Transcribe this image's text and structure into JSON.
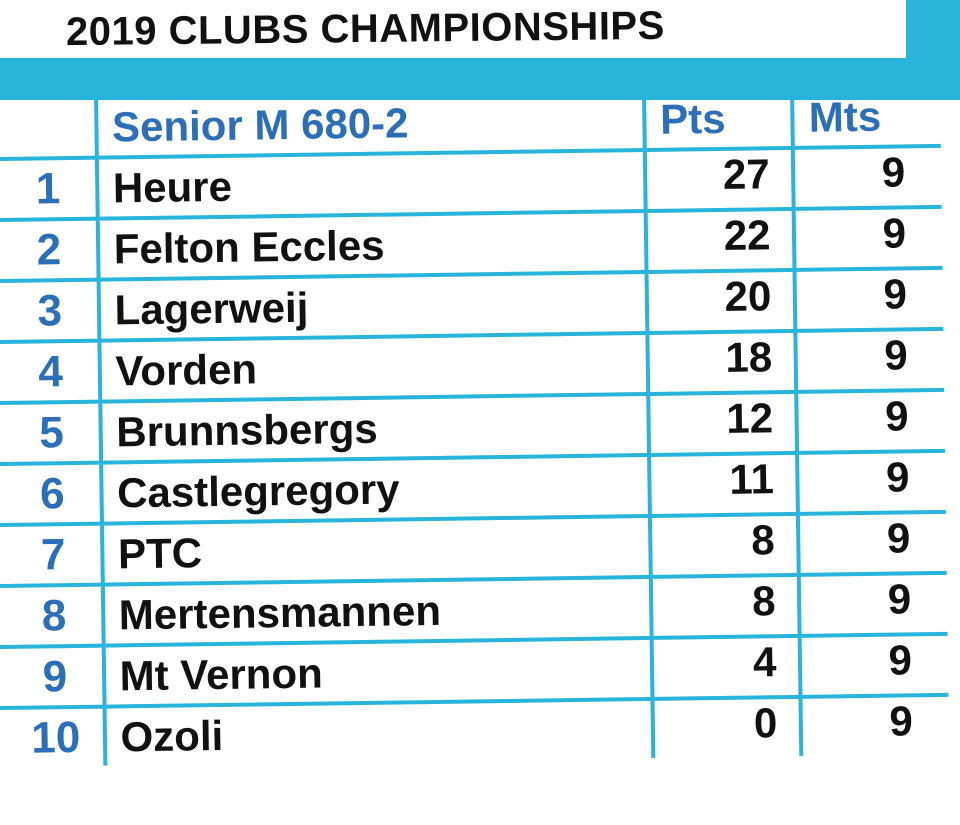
{
  "title": "2019 CLUBS CHAMPIONSHIPS",
  "table": {
    "headers": {
      "rank": "",
      "team": "Senior M 680-2",
      "pts": "Pts",
      "mts": "Mts"
    },
    "rows": [
      {
        "rank": "1",
        "team": "Heure",
        "pts": "27",
        "mts": "9"
      },
      {
        "rank": "2",
        "team": "Felton Eccles",
        "pts": "22",
        "mts": "9"
      },
      {
        "rank": "3",
        "team": "Lagerweij",
        "pts": "20",
        "mts": "9"
      },
      {
        "rank": "4",
        "team": "Vorden",
        "pts": "18",
        "mts": "9"
      },
      {
        "rank": "5",
        "team": "Brunnsbergs",
        "pts": "12",
        "mts": "9"
      },
      {
        "rank": "6",
        "team": "Castlegregory",
        "pts": "11",
        "mts": "9"
      },
      {
        "rank": "7",
        "team": "PTC",
        "pts": "8",
        "mts": "9"
      },
      {
        "rank": "8",
        "team": "Mertensmannen",
        "pts": "8",
        "mts": "9"
      },
      {
        "rank": "9",
        "team": "Mt Vernon",
        "pts": "4",
        "mts": "9"
      },
      {
        "rank": "10",
        "team": "Ozoli",
        "pts": "0",
        "mts": "9"
      }
    ]
  },
  "colors": {
    "accent": "#29b4dc",
    "header_text": "#2a6fb8",
    "body_text": "#111111"
  }
}
